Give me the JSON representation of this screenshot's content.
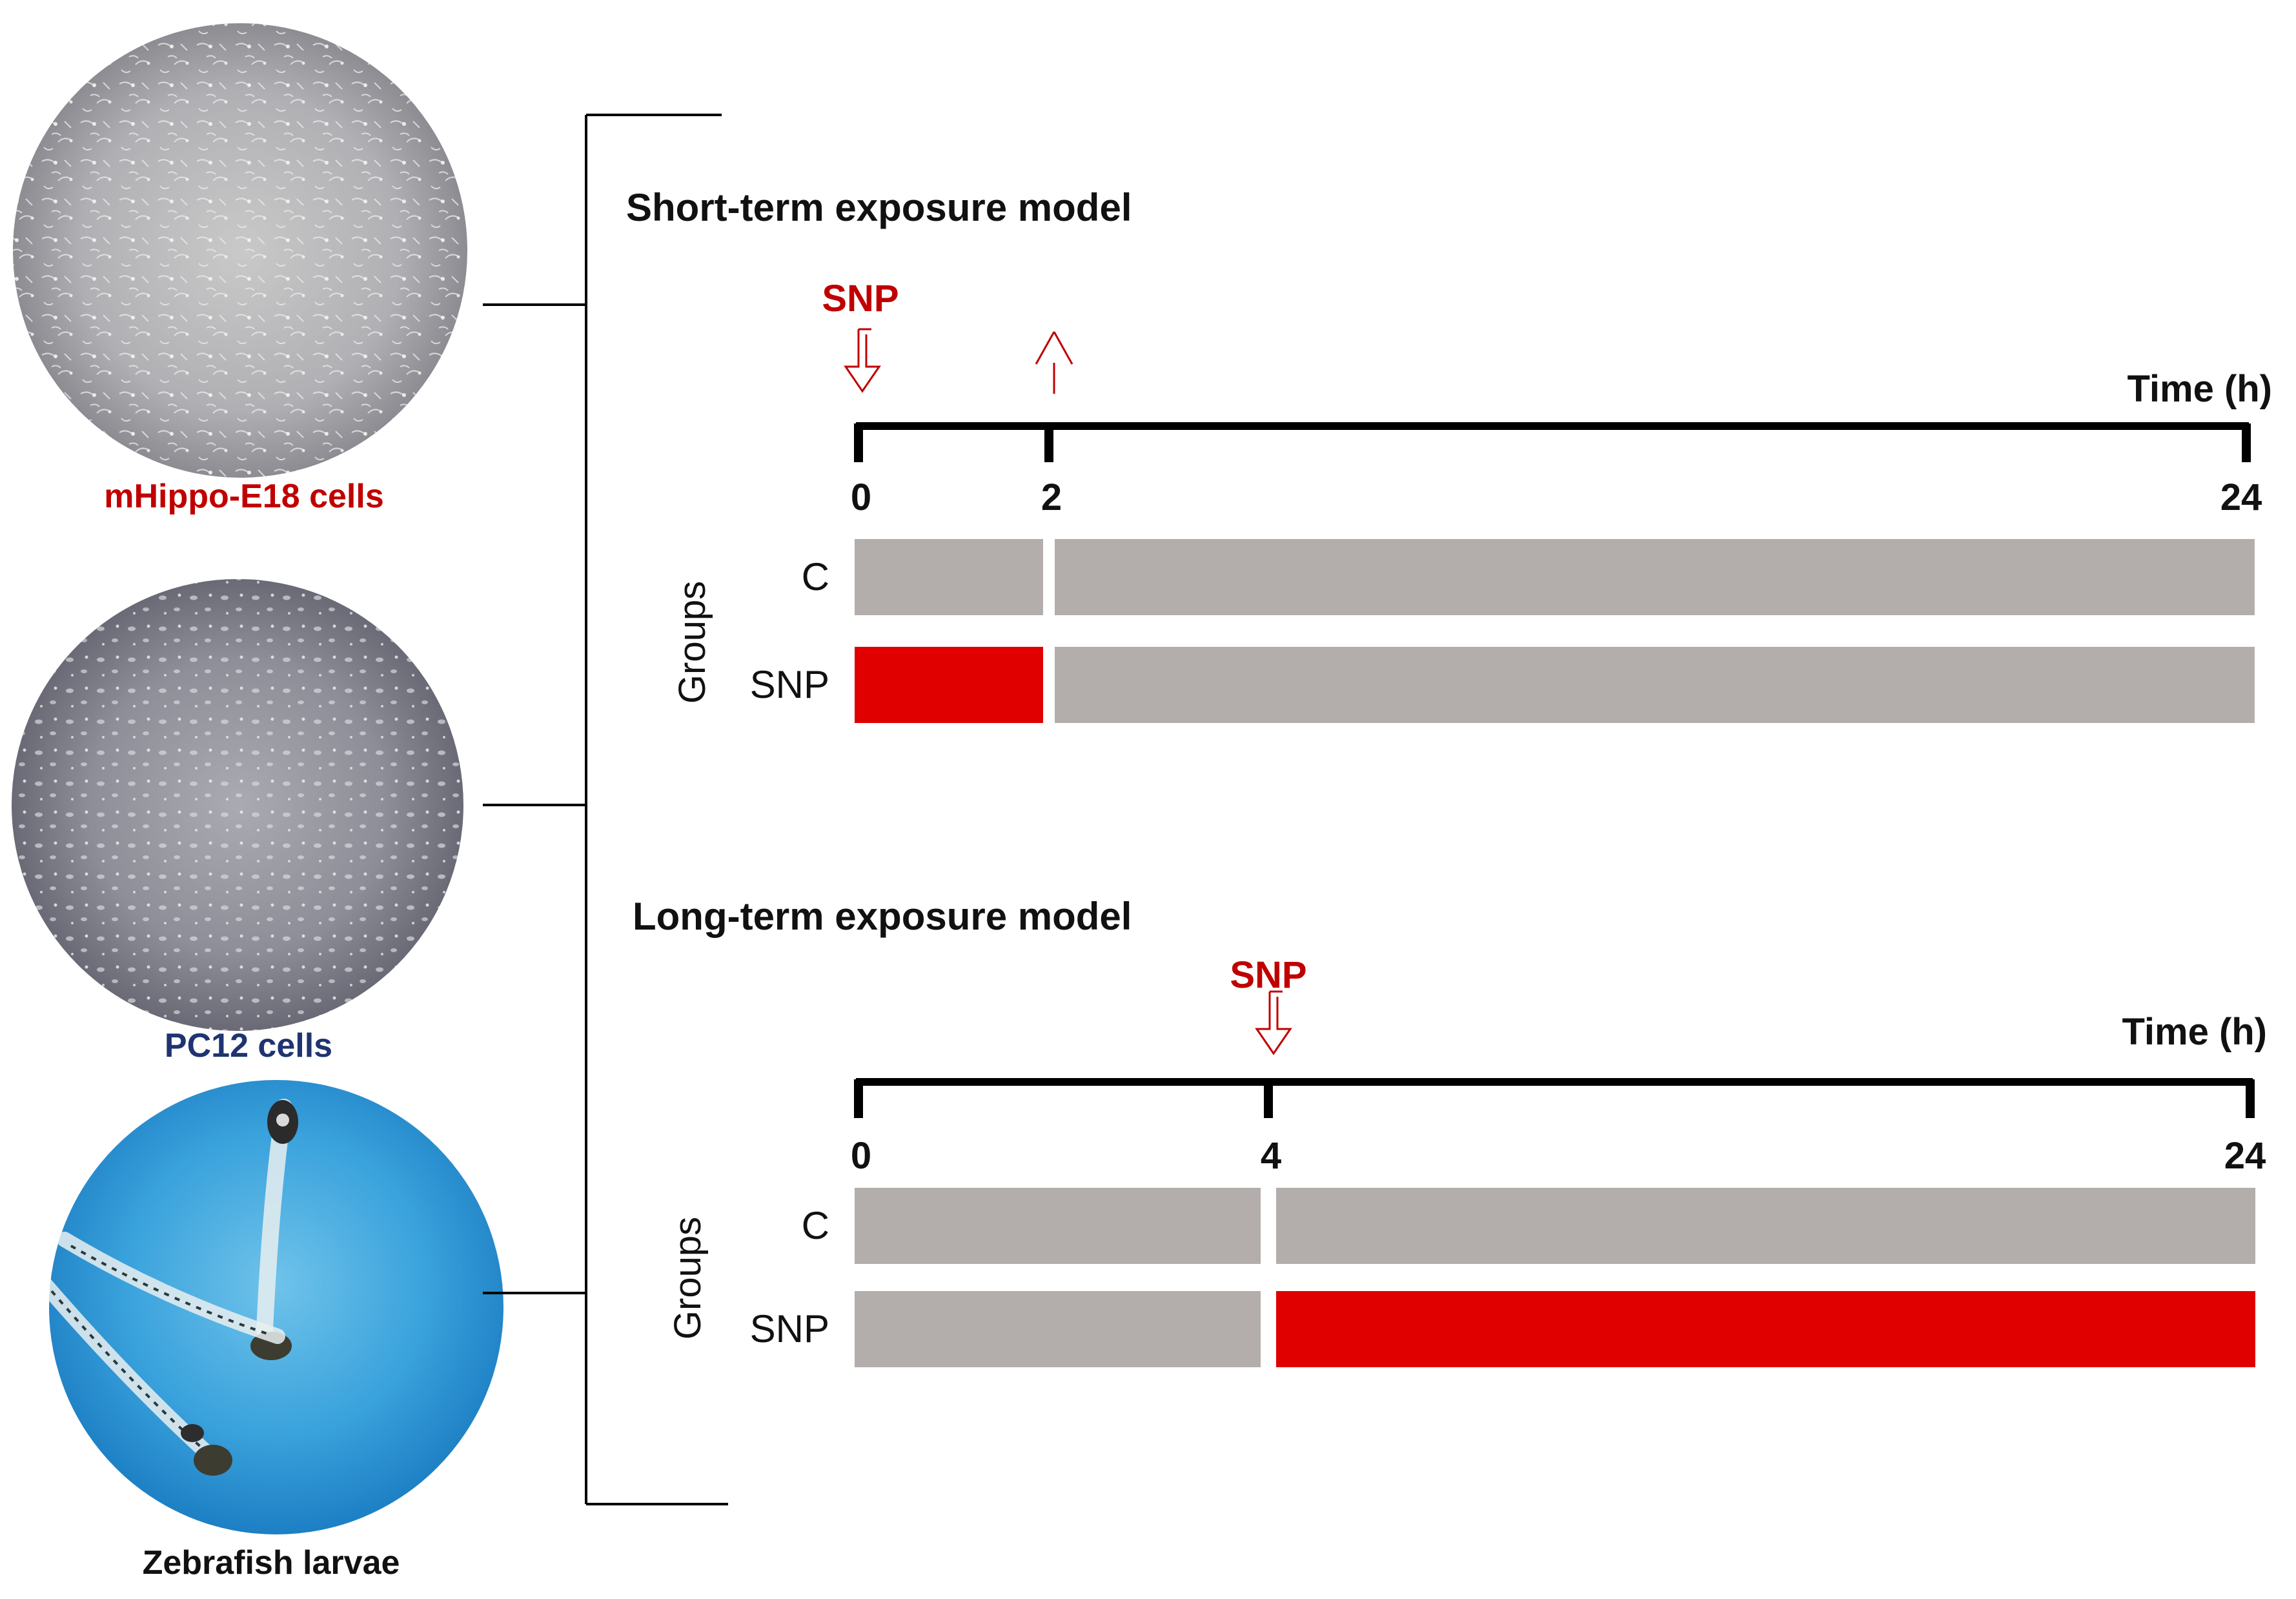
{
  "colors": {
    "exposure": "#e00000",
    "control": "#b3aeab",
    "axis": "#000000",
    "red_label": "#c00000",
    "blue_label": "#1f3470",
    "dark_label": "#111111"
  },
  "models": [
    {
      "label": "mHippo-E18 cells",
      "label_color": "#c00000",
      "image": "phase-contrast-micrograph"
    },
    {
      "label": "PC12 cells",
      "label_color": "#1f3470",
      "image": "phase-contrast-micrograph"
    },
    {
      "label": "Zebrafish larvae",
      "label_color": "#111111",
      "image": "zebrafish-larvae-photo"
    }
  ],
  "short_term": {
    "title": "Short-term exposure model",
    "snp_label": "SNP",
    "time_label": "Time (h)",
    "groups_label": "Groups",
    "axis": {
      "min": 0,
      "max": 24,
      "ticks": [
        0,
        2,
        24
      ],
      "tick_labels": [
        "0",
        "2",
        "24"
      ]
    },
    "arrows": [
      {
        "time": 0,
        "direction": "down",
        "icon": "down-arrow-icon"
      },
      {
        "time": 2,
        "direction": "up",
        "icon": "up-arrow-icon"
      }
    ],
    "groups": [
      {
        "name": "C",
        "segments": [
          {
            "start": 0,
            "end": 2,
            "type": "control"
          },
          {
            "start": 2,
            "end": 24,
            "type": "control"
          }
        ]
      },
      {
        "name": "SNP",
        "segments": [
          {
            "start": 0,
            "end": 2,
            "type": "exposure"
          },
          {
            "start": 2,
            "end": 24,
            "type": "control"
          }
        ]
      }
    ]
  },
  "long_term": {
    "title": "Long-term exposure model",
    "snp_label": "SNP",
    "time_label": "Time (h)",
    "groups_label": "Groups",
    "axis": {
      "min": 0,
      "max": 24,
      "ticks": [
        0,
        4,
        24
      ],
      "tick_labels": [
        "0",
        "4",
        "24"
      ]
    },
    "arrows": [
      {
        "time": 4,
        "direction": "down",
        "icon": "down-arrow-icon"
      }
    ],
    "groups": [
      {
        "name": "C",
        "segments": [
          {
            "start": 0,
            "end": 4,
            "type": "control"
          },
          {
            "start": 4,
            "end": 24,
            "type": "control"
          }
        ]
      },
      {
        "name": "SNP",
        "segments": [
          {
            "start": 0,
            "end": 4,
            "type": "control"
          },
          {
            "start": 4,
            "end": 24,
            "type": "exposure"
          }
        ]
      }
    ]
  }
}
